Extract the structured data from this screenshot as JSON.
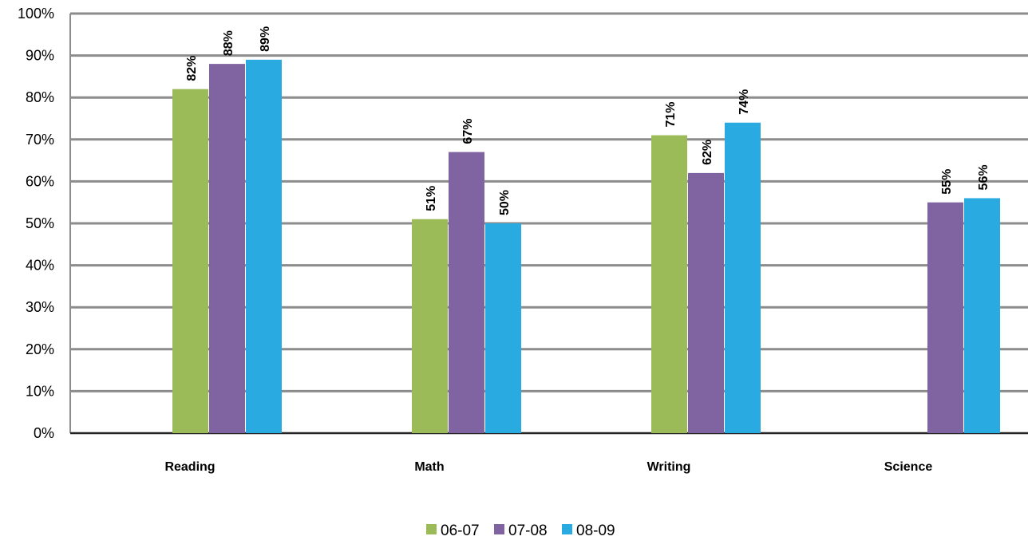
{
  "chart_data": {
    "type": "bar",
    "categories": [
      "Reading",
      "Math",
      "Writing",
      "Science"
    ],
    "series": [
      {
        "name": "06-07",
        "color": "#9BBB59",
        "values": [
          82,
          51,
          71,
          null
        ]
      },
      {
        "name": "07-08",
        "color": "#8064A2",
        "values": [
          88,
          67,
          62,
          55
        ]
      },
      {
        "name": "08-09",
        "color": "#29ABE2",
        "values": [
          89,
          50,
          74,
          56
        ]
      }
    ],
    "ylim": [
      0,
      100
    ],
    "ytick_step": 10,
    "ytick_suffix": "%",
    "data_label_suffix": "%",
    "grid": true,
    "legend_position": "bottom"
  }
}
